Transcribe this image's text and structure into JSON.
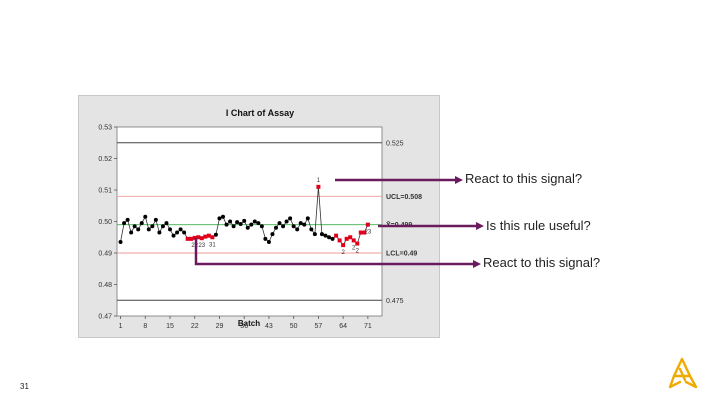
{
  "slide": {
    "number": "31"
  },
  "callouts": [
    {
      "text": "React to this signal?"
    },
    {
      "text": "Is this rule useful?"
    },
    {
      "text": "React to this signal?"
    }
  ],
  "colors": {
    "arrow": "#6a1b5d",
    "normal_point": "#000000",
    "signal_point": "#e0001b",
    "center_line": "#3fb04f",
    "control_limits": "#ef9a9a",
    "spec_limits": "#444444",
    "logo": "#f0ab00"
  },
  "chart_data": {
    "type": "line",
    "title": "I Chart of Assay",
    "xlabel": "Batch",
    "ylabel": "",
    "xlim": [
      0,
      75
    ],
    "ylim": [
      0.47,
      0.53
    ],
    "x_ticks": [
      1,
      8,
      15,
      22,
      29,
      36,
      43,
      50,
      57,
      64,
      71
    ],
    "y_ticks": [
      0.47,
      0.48,
      0.49,
      0.5,
      0.51,
      0.52,
      0.53
    ],
    "y_tick_labels": [
      "0.47",
      "0.48",
      "0.49",
      "0.50",
      "0.51",
      "0.52",
      "0.53"
    ],
    "reference_lines": [
      {
        "value": 0.508,
        "label": "UCL=0.508",
        "kind": "ucl"
      },
      {
        "value": 0.499,
        "label": "X̄=0.499",
        "kind": "center"
      },
      {
        "value": 0.49,
        "label": "LCL=0.49",
        "kind": "lcl"
      },
      {
        "value": 0.525,
        "label": "0.525",
        "kind": "spec"
      },
      {
        "value": 0.475,
        "label": "0.475",
        "kind": "spec"
      }
    ],
    "grid": false,
    "series": [
      {
        "values": [
          0.4935,
          0.4995,
          0.5005,
          0.4965,
          0.4985,
          0.4975,
          0.4995,
          0.5015,
          0.4975,
          0.4985,
          0.5005,
          0.4965,
          0.4985,
          0.4995,
          0.4975,
          0.4955,
          0.4965,
          0.4975,
          0.4965,
          0.4945,
          0.4945,
          0.4948,
          0.495,
          0.4947,
          0.4952,
          0.4955,
          0.495,
          0.4958,
          0.501,
          0.5015,
          0.499,
          0.5,
          0.4985,
          0.4998,
          0.4992,
          0.5002,
          0.498,
          0.499,
          0.5,
          0.4995,
          0.4985,
          0.4945,
          0.4935,
          0.496,
          0.498,
          0.4995,
          0.4985,
          0.5,
          0.501,
          0.4985,
          0.4975,
          0.4995,
          0.499,
          0.501,
          0.4975,
          0.496,
          0.511,
          0.496,
          0.4955,
          0.495,
          0.4945,
          0.4955,
          0.494,
          0.4925,
          0.4945,
          0.495,
          0.494,
          0.493,
          0.4965,
          0.4965,
          0.499
        ]
      }
    ],
    "signal_points": [
      {
        "x": 20,
        "label": ""
      },
      {
        "x": 21,
        "label": ""
      },
      {
        "x": 22,
        "label": "22"
      },
      {
        "x": 23,
        "label": ""
      },
      {
        "x": 24,
        "label": "23"
      },
      {
        "x": 25,
        "label": ""
      },
      {
        "x": 26,
        "label": ""
      },
      {
        "x": 27,
        "label": "31"
      },
      {
        "x": 57,
        "label": "1"
      },
      {
        "x": 62,
        "label": ""
      },
      {
        "x": 63,
        "label": ""
      },
      {
        "x": 64,
        "label": "2"
      },
      {
        "x": 65,
        "label": ""
      },
      {
        "x": 66,
        "label": ""
      },
      {
        "x": 67,
        "label": "2"
      },
      {
        "x": 68,
        "label": "2"
      },
      {
        "x": 69,
        "label": ""
      },
      {
        "x": 70,
        "label": ""
      },
      {
        "x": 71,
        "label": "23"
      }
    ]
  }
}
